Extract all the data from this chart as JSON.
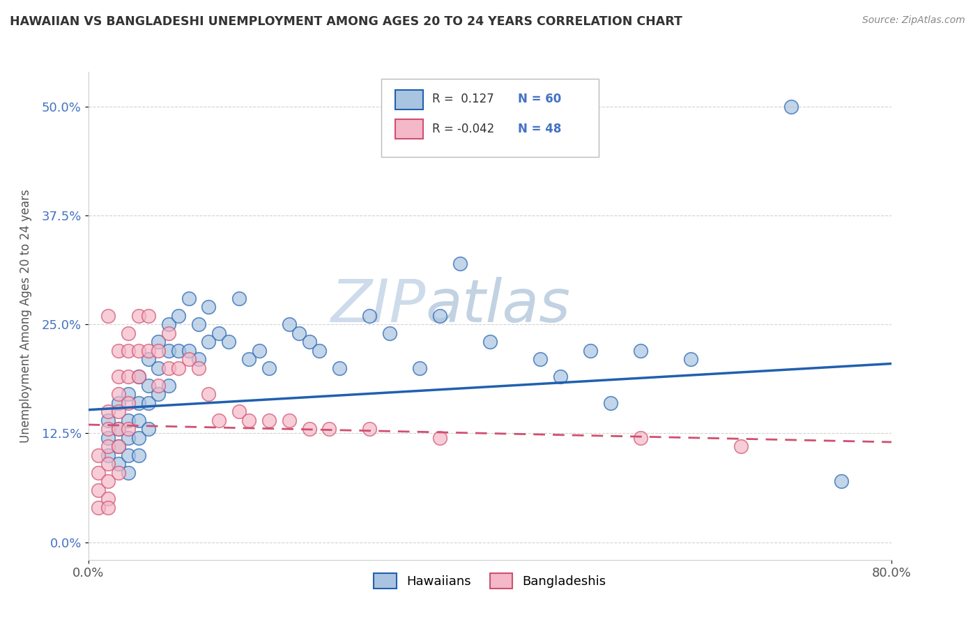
{
  "title": "HAWAIIAN VS BANGLADESHI UNEMPLOYMENT AMONG AGES 20 TO 24 YEARS CORRELATION CHART",
  "source": "Source: ZipAtlas.com",
  "ylabel": "Unemployment Among Ages 20 to 24 years",
  "xlabel_hawaiians": "Hawaiians",
  "xlabel_bangladeshis": "Bangladeshis",
  "xlim": [
    0.0,
    0.8
  ],
  "ylim": [
    -0.02,
    0.54
  ],
  "yticks": [
    0.0,
    0.125,
    0.25,
    0.375,
    0.5
  ],
  "ytick_labels": [
    "0.0%",
    "12.5%",
    "25.0%",
    "37.5%",
    "50.0%"
  ],
  "xticks": [
    0.0,
    0.8
  ],
  "xtick_labels": [
    "0.0%",
    "80.0%"
  ],
  "hawaiian_R": 0.127,
  "hawaiian_N": 60,
  "bangladeshi_R": -0.042,
  "bangladeshi_N": 48,
  "hawaiian_color": "#a8c4e0",
  "bangladeshi_color": "#f4b8c8",
  "hawaiian_line_color": "#2060b0",
  "bangladeshi_line_color": "#d05070",
  "watermark_zip": "ZIP",
  "watermark_atlas": "atlas",
  "background_color": "#ffffff",
  "hawaiian_scatter_x": [
    0.02,
    0.02,
    0.02,
    0.03,
    0.03,
    0.03,
    0.03,
    0.04,
    0.04,
    0.04,
    0.04,
    0.04,
    0.05,
    0.05,
    0.05,
    0.05,
    0.05,
    0.06,
    0.06,
    0.06,
    0.06,
    0.07,
    0.07,
    0.07,
    0.08,
    0.08,
    0.08,
    0.09,
    0.09,
    0.1,
    0.1,
    0.11,
    0.11,
    0.12,
    0.12,
    0.13,
    0.14,
    0.15,
    0.16,
    0.17,
    0.18,
    0.2,
    0.21,
    0.22,
    0.23,
    0.25,
    0.28,
    0.3,
    0.33,
    0.35,
    0.37,
    0.4,
    0.45,
    0.47,
    0.5,
    0.52,
    0.55,
    0.6,
    0.7,
    0.75
  ],
  "hawaiian_scatter_y": [
    0.14,
    0.12,
    0.1,
    0.16,
    0.13,
    0.11,
    0.09,
    0.17,
    0.14,
    0.12,
    0.1,
    0.08,
    0.19,
    0.16,
    0.14,
    0.12,
    0.1,
    0.21,
    0.18,
    0.16,
    0.13,
    0.23,
    0.2,
    0.17,
    0.25,
    0.22,
    0.18,
    0.26,
    0.22,
    0.28,
    0.22,
    0.25,
    0.21,
    0.27,
    0.23,
    0.24,
    0.23,
    0.28,
    0.21,
    0.22,
    0.2,
    0.25,
    0.24,
    0.23,
    0.22,
    0.2,
    0.26,
    0.24,
    0.2,
    0.26,
    0.32,
    0.23,
    0.21,
    0.19,
    0.22,
    0.16,
    0.22,
    0.21,
    0.5,
    0.07
  ],
  "bangladeshi_scatter_x": [
    0.01,
    0.01,
    0.01,
    0.01,
    0.02,
    0.02,
    0.02,
    0.02,
    0.02,
    0.02,
    0.02,
    0.02,
    0.03,
    0.03,
    0.03,
    0.03,
    0.03,
    0.03,
    0.03,
    0.04,
    0.04,
    0.04,
    0.04,
    0.04,
    0.05,
    0.05,
    0.05,
    0.06,
    0.06,
    0.07,
    0.07,
    0.08,
    0.08,
    0.09,
    0.1,
    0.11,
    0.12,
    0.13,
    0.15,
    0.16,
    0.18,
    0.2,
    0.22,
    0.24,
    0.28,
    0.35,
    0.55,
    0.65
  ],
  "bangladeshi_scatter_y": [
    0.1,
    0.08,
    0.06,
    0.04,
    0.15,
    0.13,
    0.11,
    0.09,
    0.07,
    0.05,
    0.26,
    0.04,
    0.22,
    0.19,
    0.17,
    0.15,
    0.13,
    0.11,
    0.08,
    0.24,
    0.22,
    0.19,
    0.16,
    0.13,
    0.26,
    0.22,
    0.19,
    0.26,
    0.22,
    0.22,
    0.18,
    0.24,
    0.2,
    0.2,
    0.21,
    0.2,
    0.17,
    0.14,
    0.15,
    0.14,
    0.14,
    0.14,
    0.13,
    0.13,
    0.13,
    0.12,
    0.12,
    0.11
  ],
  "hawaiian_trend_start": 0.152,
  "hawaiian_trend_end": 0.205,
  "bangladeshi_trend_start": 0.135,
  "bangladeshi_trend_end": 0.115
}
